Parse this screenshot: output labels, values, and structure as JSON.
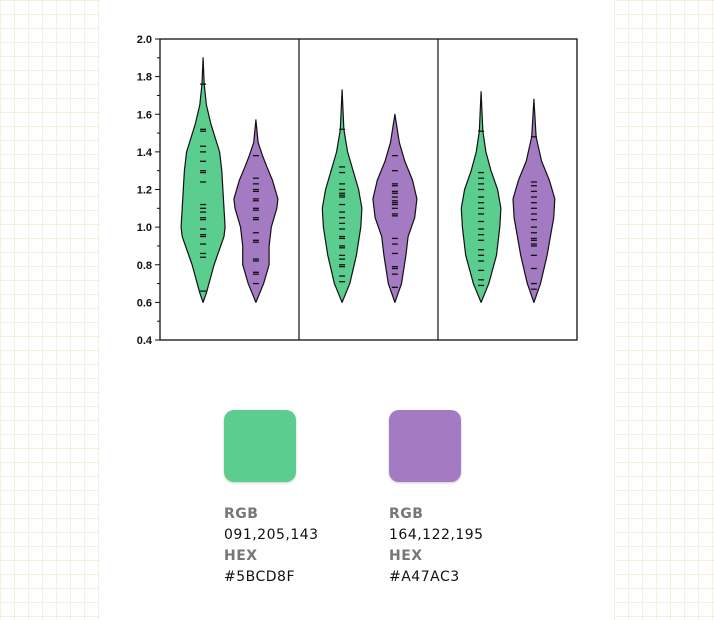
{
  "chart_data": {
    "type": "violin",
    "title": "",
    "xlabel": "",
    "ylabel": "",
    "ylim": [
      0.4,
      2.0
    ],
    "yticks": [
      "0.4",
      "0.6",
      "0.8",
      "1.0",
      "1.2",
      "1.4",
      "1.6",
      "1.8",
      "2.0"
    ],
    "grid": false,
    "panels": [
      {
        "violins": [
          {
            "color": "#5BCD8F",
            "profile": [
              [
                0.6,
                0
              ],
              [
                0.65,
                0.15
              ],
              [
                0.8,
                0.5
              ],
              [
                0.95,
                0.95
              ],
              [
                1.0,
                1.0
              ],
              [
                1.1,
                0.95
              ],
              [
                1.3,
                0.85
              ],
              [
                1.4,
                0.75
              ],
              [
                1.55,
                0.35
              ],
              [
                1.65,
                0.15
              ],
              [
                1.76,
                0.05
              ],
              [
                1.9,
                0
              ]
            ],
            "rug": [
              0.66,
              0.84,
              0.86,
              0.91,
              0.95,
              0.96,
              0.99,
              1.04,
              1.05,
              1.08,
              1.1,
              1.12,
              1.24,
              1.29,
              1.3,
              1.35,
              1.4,
              1.43,
              1.51,
              1.52,
              1.76
            ]
          },
          {
            "color": "#A47AC3",
            "profile": [
              [
                0.6,
                0
              ],
              [
                0.7,
                0.35
              ],
              [
                0.8,
                0.6
              ],
              [
                0.9,
                0.6
              ],
              [
                1.0,
                0.7
              ],
              [
                1.1,
                0.95
              ],
              [
                1.15,
                1.0
              ],
              [
                1.25,
                0.75
              ],
              [
                1.32,
                0.5
              ],
              [
                1.38,
                0.3
              ],
              [
                1.45,
                0.1
              ],
              [
                1.57,
                0
              ]
            ],
            "rug": [
              0.7,
              0.75,
              0.76,
              0.82,
              0.83,
              0.92,
              0.93,
              0.97,
              1.04,
              1.05,
              1.09,
              1.1,
              1.14,
              1.15,
              1.19,
              1.2,
              1.23,
              1.26,
              1.38
            ]
          }
        ]
      },
      {
        "violins": [
          {
            "color": "#5BCD8F",
            "profile": [
              [
                0.6,
                0
              ],
              [
                0.7,
                0.35
              ],
              [
                0.85,
                0.65
              ],
              [
                1.0,
                0.85
              ],
              [
                1.1,
                0.9
              ],
              [
                1.2,
                0.75
              ],
              [
                1.3,
                0.5
              ],
              [
                1.4,
                0.25
              ],
              [
                1.52,
                0.08
              ],
              [
                1.73,
                0
              ]
            ],
            "rug": [
              0.71,
              0.74,
              0.79,
              0.8,
              0.83,
              0.85,
              0.89,
              0.9,
              0.94,
              0.95,
              0.99,
              1.02,
              1.05,
              1.08,
              1.12,
              1.16,
              1.17,
              1.18,
              1.2,
              1.23,
              1.29,
              1.32,
              1.52
            ]
          },
          {
            "color": "#A47AC3",
            "profile": [
              [
                0.6,
                0
              ],
              [
                0.7,
                0.3
              ],
              [
                0.85,
                0.5
              ],
              [
                0.95,
                0.6
              ],
              [
                1.05,
                0.9
              ],
              [
                1.15,
                1.0
              ],
              [
                1.25,
                0.8
              ],
              [
                1.35,
                0.45
              ],
              [
                1.45,
                0.2
              ],
              [
                1.6,
                0
              ]
            ],
            "rug": [
              0.68,
              0.75,
              0.78,
              0.79,
              0.86,
              0.91,
              0.94,
              1.06,
              1.07,
              1.1,
              1.12,
              1.13,
              1.14,
              1.16,
              1.18,
              1.19,
              1.22,
              1.23,
              1.3,
              1.38
            ]
          }
        ]
      },
      {
        "violins": [
          {
            "color": "#5BCD8F",
            "profile": [
              [
                0.6,
                0
              ],
              [
                0.7,
                0.35
              ],
              [
                0.85,
                0.7
              ],
              [
                1.0,
                0.85
              ],
              [
                1.1,
                0.9
              ],
              [
                1.2,
                0.75
              ],
              [
                1.3,
                0.45
              ],
              [
                1.4,
                0.22
              ],
              [
                1.51,
                0.08
              ],
              [
                1.72,
                0
              ]
            ],
            "rug": [
              0.69,
              0.72,
              0.77,
              0.82,
              0.85,
              0.88,
              0.93,
              0.96,
              0.99,
              1.03,
              1.07,
              1.1,
              1.13,
              1.16,
              1.2,
              1.23,
              1.26,
              1.29,
              1.51
            ]
          },
          {
            "color": "#A47AC3",
            "profile": [
              [
                0.6,
                0
              ],
              [
                0.7,
                0.3
              ],
              [
                0.85,
                0.6
              ],
              [
                0.95,
                0.75
              ],
              [
                1.05,
                0.9
              ],
              [
                1.15,
                0.95
              ],
              [
                1.25,
                0.7
              ],
              [
                1.35,
                0.35
              ],
              [
                1.48,
                0.1
              ],
              [
                1.68,
                0
              ]
            ],
            "rug": [
              0.67,
              0.7,
              0.78,
              0.85,
              0.9,
              0.91,
              0.93,
              0.94,
              0.97,
              1.0,
              1.04,
              1.07,
              1.1,
              1.13,
              1.16,
              1.19,
              1.22,
              1.24,
              1.48
            ]
          }
        ]
      }
    ]
  },
  "palette": [
    {
      "rgb_label": "RGB",
      "rgb": "091,205,143",
      "hex_label": "HEX",
      "hex": "#5BCD8F"
    },
    {
      "rgb_label": "RGB",
      "rgb": "164,122,195",
      "hex_label": "HEX",
      "hex": "#A47AC3"
    }
  ]
}
